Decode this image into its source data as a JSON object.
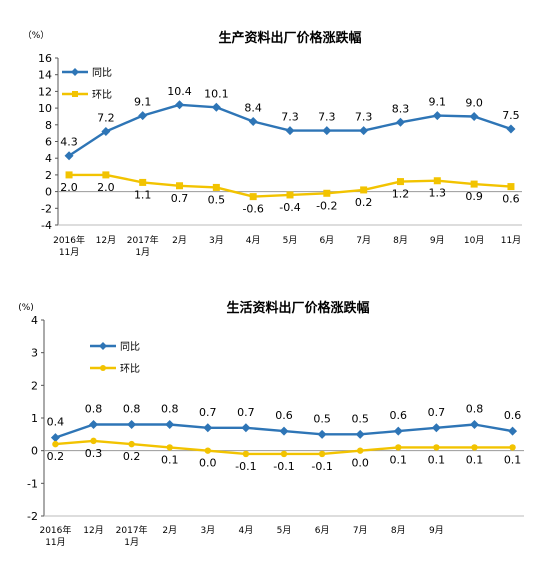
{
  "chart_data": [
    {
      "type": "line",
      "title": "生产资料出厂价格涨跌幅",
      "unit": "（%）",
      "ylim": [
        -4,
        16
      ],
      "yticks": [
        "16",
        "14",
        "12",
        "10",
        "8",
        "6",
        "4",
        "2",
        "0",
        "-2",
        "-4"
      ],
      "categories": [
        [
          "2016年",
          "11月"
        ],
        [
          "12月"
        ],
        [
          "2017年",
          "1月"
        ],
        [
          "2月"
        ],
        [
          "3月"
        ],
        [
          "4月"
        ],
        [
          "5月"
        ],
        [
          "6月"
        ],
        [
          "7月"
        ],
        [
          "8月"
        ],
        [
          "9月"
        ],
        [
          "10月"
        ],
        [
          "11月"
        ]
      ],
      "series": [
        {
          "name": "同比",
          "color": "#2e75b6",
          "marker": "diamond",
          "values": [
            4.3,
            7.2,
            9.1,
            10.4,
            10.1,
            8.4,
            7.3,
            7.3,
            7.3,
            8.3,
            9.1,
            9.0,
            7.5
          ],
          "labels": [
            "4.3",
            "7.2",
            "9.1",
            "10.4",
            "10.1",
            "8.4",
            "7.3",
            "7.3",
            "7.3",
            "8.3",
            "9.1",
            "9.0",
            "7.5"
          ]
        },
        {
          "name": "环比",
          "color": "#f2c300",
          "marker": "square",
          "values": [
            2.0,
            2.0,
            1.1,
            0.7,
            0.5,
            -0.6,
            -0.4,
            -0.2,
            0.2,
            1.2,
            1.3,
            0.9,
            0.6
          ],
          "labels": [
            "2.0",
            "2.0",
            "1.1",
            "0.7",
            "0.5",
            "-0.6",
            "-0.4",
            "-0.2",
            "0.2",
            "1.2",
            "1.3",
            "0.9",
            "0.6"
          ]
        }
      ],
      "grid": false,
      "legend": "top-left"
    },
    {
      "type": "line",
      "title": "生活资料出厂价格涨跌幅",
      "unit": "(%)",
      "ylim": [
        -2,
        4
      ],
      "yticks": [
        "4",
        "3",
        "2",
        "1",
        "0",
        "-1",
        "-2"
      ],
      "categories": [
        [
          "2016年",
          "11月"
        ],
        [
          "12月"
        ],
        [
          "2017年",
          "1月"
        ],
        [
          "2月"
        ],
        [
          "3月"
        ],
        [
          "4月"
        ],
        [
          "5月"
        ],
        [
          "6月"
        ],
        [
          "7月"
        ],
        [
          "8月"
        ],
        [
          "9月"
        ],
        [
          ""
        ],
        [
          ""
        ]
      ],
      "series": [
        {
          "name": "同比",
          "color": "#2e75b6",
          "marker": "diamond",
          "values": [
            0.4,
            0.8,
            0.8,
            0.8,
            0.7,
            0.7,
            0.6,
            0.5,
            0.5,
            0.6,
            0.7,
            0.8,
            0.6
          ],
          "labels": [
            "0.4",
            "0.8",
            "0.8",
            "0.8",
            "0.7",
            "0.7",
            "0.6",
            "0.5",
            "0.5",
            "0.6",
            "0.7",
            "0.8",
            "0.6"
          ]
        },
        {
          "name": "环比",
          "color": "#f2c300",
          "marker": "circle",
          "values": [
            0.2,
            0.3,
            0.2,
            0.1,
            0.0,
            -0.1,
            -0.1,
            -0.1,
            0.0,
            0.1,
            0.1,
            0.1,
            0.1
          ],
          "labels": [
            "0.2",
            "0.3",
            "0.2",
            "0.1",
            "0.0",
            "-0.1",
            "-0.1",
            "-0.1",
            "0.0",
            "0.1",
            "0.1",
            "0.1",
            "0.1"
          ]
        }
      ],
      "grid": false,
      "legend": "top-left"
    }
  ]
}
